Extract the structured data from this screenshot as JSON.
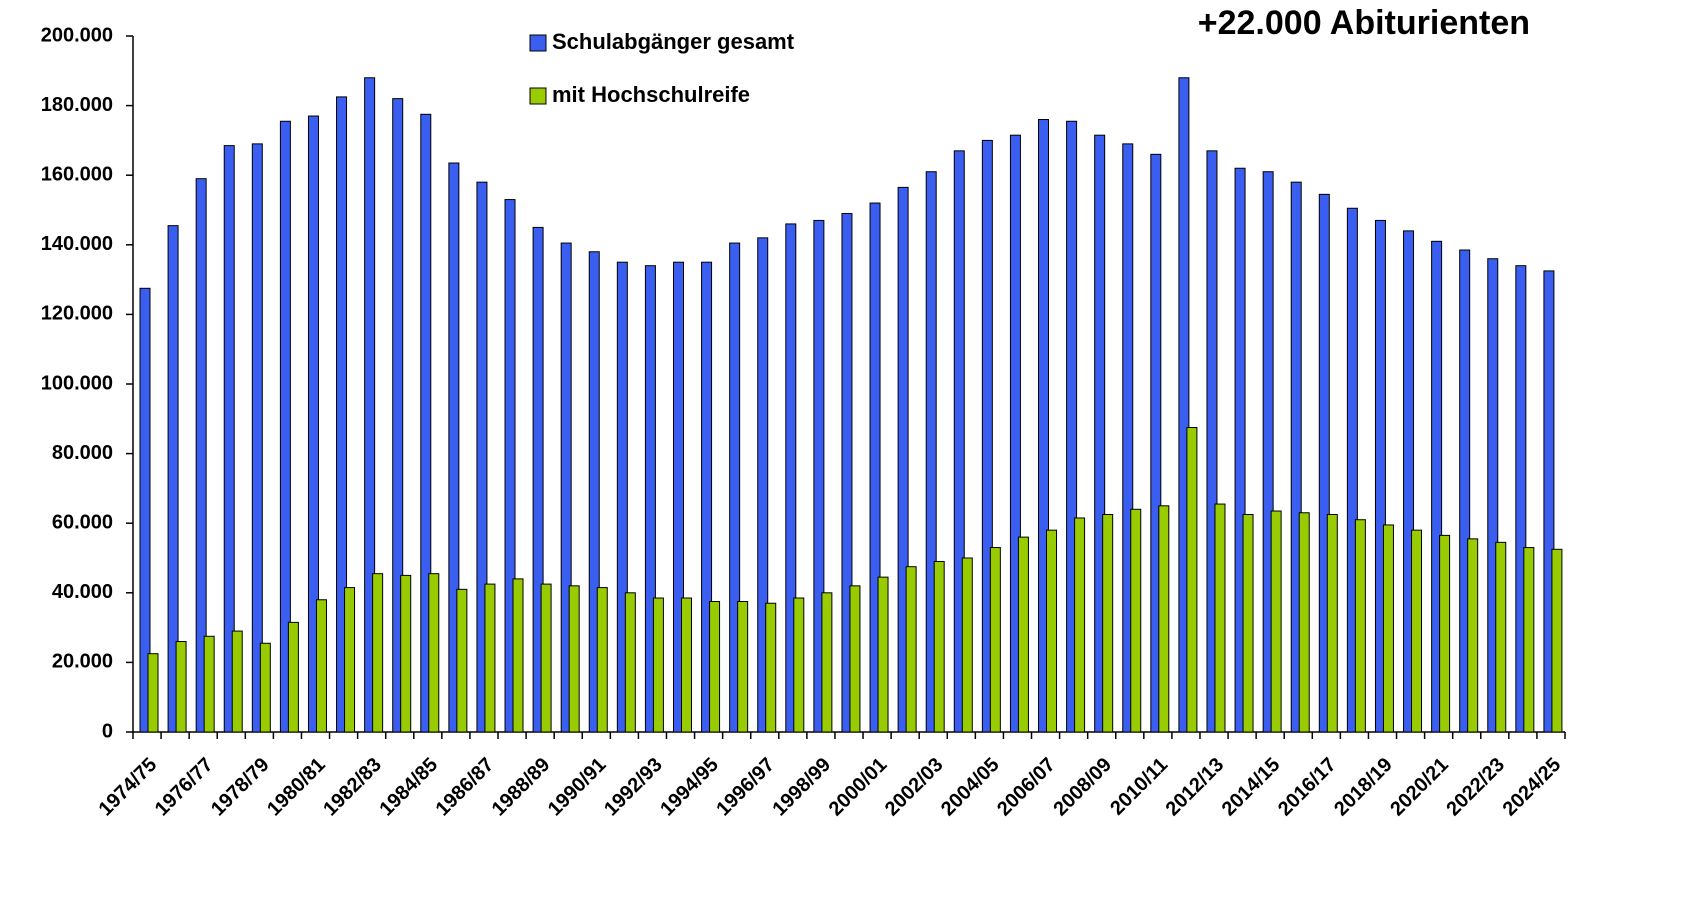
{
  "chart_data": {
    "type": "bar",
    "title": "+22.000 Abiturienten",
    "categories": [
      "1974/75",
      null,
      "1976/77",
      null,
      "1978/79",
      null,
      "1980/81",
      null,
      "1982/83",
      null,
      "1984/85",
      null,
      "1986/87",
      null,
      "1988/89",
      null,
      "1990/91",
      null,
      "1992/93",
      null,
      "1994/95",
      null,
      "1996/97",
      null,
      "1998/99",
      null,
      "2000/01",
      null,
      "2002/03",
      null,
      "2004/05",
      null,
      "2006/07",
      null,
      "2008/09",
      null,
      "2010/11",
      null,
      "2012/13",
      null,
      "2014/15",
      null,
      "2016/17",
      null,
      "2018/19",
      null,
      "2020/21",
      null,
      "2022/23",
      null,
      "2024/25"
    ],
    "series": [
      {
        "name": "Schulabgänger gesamt",
        "color": "#3a5ff0",
        "values": [
          127500,
          145500,
          159000,
          168500,
          169000,
          175500,
          177000,
          182500,
          188000,
          182000,
          177500,
          163500,
          158000,
          153000,
          145000,
          140500,
          138000,
          135000,
          134000,
          135000,
          135000,
          140500,
          142000,
          146000,
          147000,
          149000,
          152000,
          156500,
          161000,
          167000,
          170000,
          171500,
          176000,
          175500,
          171500,
          169000,
          166000,
          188000,
          167000,
          162000,
          161000,
          158000,
          154500,
          150500,
          147000,
          144000,
          141000,
          138500,
          136000,
          134000,
          132500
        ]
      },
      {
        "name": "mit Hochschulreife",
        "color": "#99cc00",
        "values": [
          22500,
          26000,
          27500,
          29000,
          25500,
          31500,
          38000,
          41500,
          45500,
          45000,
          45500,
          41000,
          42500,
          44000,
          42500,
          42000,
          41500,
          40000,
          38500,
          38500,
          37500,
          37500,
          37000,
          38500,
          40000,
          42000,
          44500,
          47500,
          49000,
          50000,
          53000,
          56000,
          58000,
          61500,
          62500,
          64000,
          65000,
          87500,
          65500,
          62500,
          63500,
          63000,
          62500,
          61000,
          59500,
          58000,
          56500,
          55500,
          54500,
          53000,
          52500
        ]
      }
    ],
    "ylim": [
      0,
      200000
    ],
    "yticks": [
      0,
      {
        "value": 20000,
        "label": "20.000"
      },
      {
        "value": 40000,
        "label": "40.000"
      },
      {
        "value": 60000,
        "label": "60.000"
      },
      {
        "value": 80000,
        "label": "80.000"
      },
      {
        "value": 100000,
        "label": "100.000"
      },
      {
        "value": 120000,
        "label": "120.000"
      },
      {
        "value": 140000,
        "label": "140.000"
      },
      {
        "value": 160000,
        "label": "160.000"
      },
      {
        "value": 180000,
        "label": "180.000"
      },
      {
        "value": 200000,
        "label": "200.000"
      }
    ],
    "grid": false
  }
}
